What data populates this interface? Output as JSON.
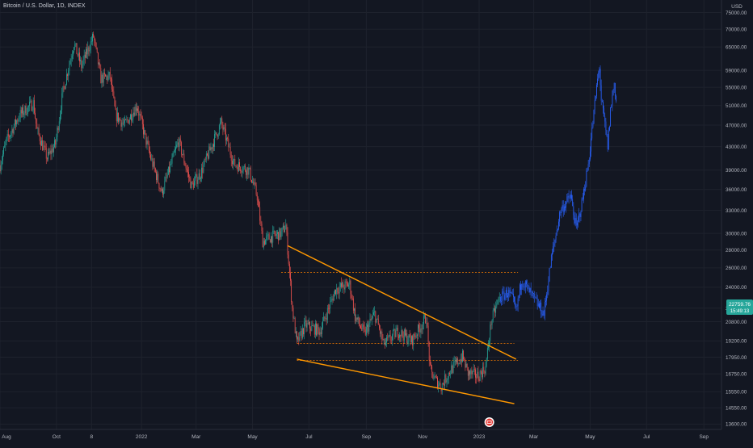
{
  "header": {
    "title": "Bitcoin / U.S. Dollar, 1D, INDEX",
    "currency": "USD"
  },
  "price_label": {
    "value": "22759.76",
    "time": "15:49:13"
  },
  "colors": {
    "background": "#131722",
    "up": "#26a69a",
    "down": "#ef5350",
    "projection": "#2962ff",
    "trendline": "#ff9800",
    "level": "#f57c00",
    "axis_text": "#b2b5be",
    "grid": "#1e222d"
  },
  "chart_data": {
    "type": "candlestick",
    "title": "Bitcoin / U.S. Dollar, 1D, INDEX",
    "y_scale": "log",
    "ylim": [
      13300,
      79000
    ],
    "xlim": [
      "2021-08-01",
      "2023-09-20"
    ],
    "x_tick_labels": [
      {
        "label": "Aug",
        "date": "2021-08-01"
      },
      {
        "label": "Oct",
        "date": "2021-10-01"
      },
      {
        "label": "8",
        "date": "2021-11-08"
      },
      {
        "label": "2022",
        "date": "2022-01-01"
      },
      {
        "label": "Mar",
        "date": "2022-03-01"
      },
      {
        "label": "May",
        "date": "2022-05-01"
      },
      {
        "label": "Jul",
        "date": "2022-07-01"
      },
      {
        "label": "Sep",
        "date": "2022-09-01"
      },
      {
        "label": "Nov",
        "date": "2022-11-01"
      },
      {
        "label": "2023",
        "date": "2023-01-01"
      },
      {
        "label": "Mar",
        "date": "2023-03-01"
      },
      {
        "label": "May",
        "date": "2023-05-01"
      },
      {
        "label": "Jul",
        "date": "2023-07-01"
      },
      {
        "label": "Sep",
        "date": "2023-09-01"
      }
    ],
    "y_tick_labels": [
      "75000.00",
      "70000.00",
      "65000.00",
      "59000.00",
      "55000.00",
      "51000.00",
      "47000.00",
      "43000.00",
      "39000.00",
      "36000.00",
      "33000.00",
      "30000.00",
      "28000.00",
      "26000.00",
      "24000.00",
      "22000.00",
      "20800.00",
      "19200.00",
      "17950.00",
      "16750.00",
      "15550.00",
      "14550.00",
      "13600.00"
    ],
    "anchors": [
      [
        "2021-08-01",
        39800
      ],
      [
        "2021-08-08",
        44000
      ],
      [
        "2021-08-22",
        49000
      ],
      [
        "2021-09-06",
        51500
      ],
      [
        "2021-09-10",
        46000
      ],
      [
        "2021-09-21",
        41000
      ],
      [
        "2021-09-30",
        43500
      ],
      [
        "2021-10-08",
        54000
      ],
      [
        "2021-10-20",
        66000
      ],
      [
        "2021-10-28",
        60000
      ],
      [
        "2021-11-10",
        68000
      ],
      [
        "2021-11-18",
        57000
      ],
      [
        "2021-11-28",
        57500
      ],
      [
        "2021-12-04",
        49000
      ],
      [
        "2021-12-14",
        47000
      ],
      [
        "2021-12-27",
        51000
      ],
      [
        "2022-01-10",
        41500
      ],
      [
        "2022-01-23",
        35500
      ],
      [
        "2022-02-10",
        44000
      ],
      [
        "2022-02-24",
        36500
      ],
      [
        "2022-03-06",
        38500
      ],
      [
        "2022-03-28",
        47500
      ],
      [
        "2022-04-11",
        40000
      ],
      [
        "2022-04-27",
        39000
      ],
      [
        "2022-05-06",
        35000
      ],
      [
        "2022-05-12",
        29000
      ],
      [
        "2022-05-20",
        29500
      ],
      [
        "2022-06-01",
        30000
      ],
      [
        "2022-06-06",
        31000
      ],
      [
        "2022-06-13",
        22000
      ],
      [
        "2022-06-18",
        19000
      ],
      [
        "2022-06-27",
        20500
      ],
      [
        "2022-07-13",
        20000
      ],
      [
        "2022-07-30",
        23800
      ],
      [
        "2022-08-14",
        24300
      ],
      [
        "2022-08-20",
        21200
      ],
      [
        "2022-08-30",
        19800
      ],
      [
        "2022-09-10",
        21500
      ],
      [
        "2022-09-20",
        18900
      ],
      [
        "2022-10-05",
        20000
      ],
      [
        "2022-10-20",
        19200
      ],
      [
        "2022-11-05",
        21200
      ],
      [
        "2022-11-09",
        17000
      ],
      [
        "2022-11-15",
        16300
      ],
      [
        "2022-11-21",
        15900
      ],
      [
        "2022-12-01",
        17000
      ],
      [
        "2022-12-14",
        18000
      ],
      [
        "2022-12-20",
        16800
      ],
      [
        "2022-12-31",
        16600
      ],
      [
        "2023-01-08",
        17200
      ],
      [
        "2023-01-14",
        20800
      ],
      [
        "2023-01-22",
        22800
      ],
      [
        "2023-02-01",
        23500
      ],
      [
        "2023-02-06",
        22800
      ],
      [
        "2023-02-10",
        21700
      ],
      [
        "2023-02-16",
        24800
      ],
      [
        "2023-02-28",
        23000
      ],
      [
        "2023-03-08",
        22000
      ],
      [
        "2023-03-12",
        21500
      ],
      [
        "2023-03-20",
        27000
      ],
      [
        "2023-03-30",
        33000
      ],
      [
        "2023-04-10",
        35000
      ],
      [
        "2023-04-16",
        30500
      ],
      [
        "2023-04-22",
        34000
      ],
      [
        "2023-04-29",
        40000
      ],
      [
        "2023-05-03",
        46000
      ],
      [
        "2023-05-08",
        55000
      ],
      [
        "2023-05-11",
        60000
      ],
      [
        "2023-05-13",
        52000
      ],
      [
        "2023-05-17",
        47000
      ],
      [
        "2023-05-20",
        43000
      ],
      [
        "2023-05-23",
        50000
      ],
      [
        "2023-05-27",
        56000
      ],
      [
        "2023-05-29",
        52000
      ]
    ],
    "projection_start": "2023-01-24",
    "levels": [
      {
        "y": 25500,
        "from": "2022-06-01",
        "to": "2023-02-12"
      },
      {
        "y": 19000,
        "from": "2022-06-18",
        "to": "2023-02-08"
      },
      {
        "y": 17700,
        "from": "2022-06-18",
        "to": "2023-02-12"
      }
    ],
    "trendlines": [
      {
        "from": [
          "2022-06-08",
          28500
        ],
        "to": [
          "2023-02-10",
          17800
        ]
      },
      {
        "from": [
          "2022-06-18",
          17800
        ],
        "to": [
          "2023-02-08",
          14800
        ]
      }
    ],
    "marker_date": "2023-01-12"
  }
}
